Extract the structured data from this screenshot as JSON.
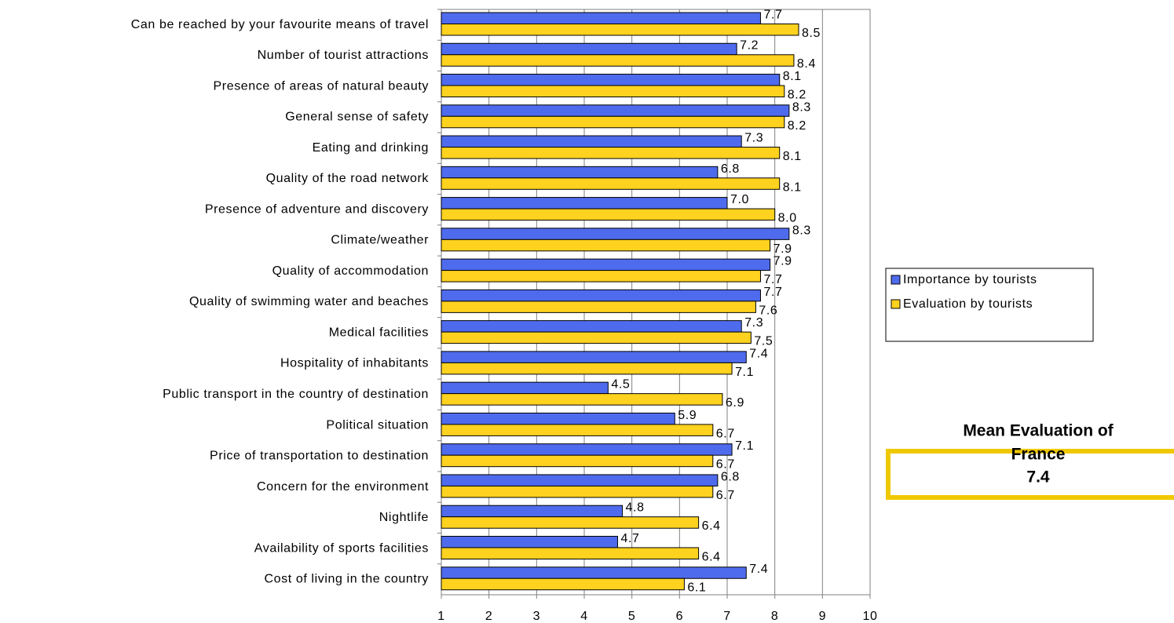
{
  "chart_data": {
    "type": "bar",
    "orientation": "horizontal",
    "categories": [
      "Can be reached by your favourite means of travel",
      "Number of tourist attractions",
      "Presence of areas of natural beauty",
      "General sense of safety",
      "Eating and drinking",
      "Quality of the road network",
      "Presence of adventure and discovery",
      "Climate/weather",
      "Quality of accommodation",
      "Quality of swimming water and beaches",
      "Medical facilities",
      "Hospitality of inhabitants",
      "Public transport in the country of destination",
      "Political situation",
      "Price of transportation to destination",
      "Concern for the environment",
      "Nightlife",
      "Availability of sports facilities",
      "Cost of living in the country"
    ],
    "series": [
      {
        "name": "Importance by tourists",
        "color": "#4f6bed",
        "values": [
          7.7,
          7.2,
          8.1,
          8.3,
          7.3,
          6.8,
          7.0,
          8.3,
          7.9,
          7.7,
          7.3,
          7.4,
          4.5,
          5.9,
          7.1,
          6.8,
          4.8,
          4.7,
          7.4
        ],
        "value_labels": [
          "7.7",
          "7.2",
          "8.1",
          "8.3",
          "7.3",
          "6.8",
          "7.0",
          "8.3",
          "7.9",
          "7.7",
          "7.3",
          "7.4",
          "4.5",
          "5.9",
          "7.1",
          "6.8",
          "4.8",
          "4.7",
          "7.4"
        ]
      },
      {
        "name": "Evaluation by tourists",
        "color": "#ffd21f",
        "values": [
          8.5,
          8.4,
          8.2,
          8.2,
          8.1,
          8.1,
          8.0,
          7.9,
          7.7,
          7.6,
          7.5,
          7.1,
          6.9,
          6.7,
          6.7,
          6.7,
          6.4,
          6.4,
          6.1
        ],
        "value_labels": [
          "8.5",
          "8.4",
          "8.2",
          "8.2",
          "8.1",
          "8.1",
          "8.0",
          "7.9",
          "7.7",
          "7.6",
          "7.5",
          "7.1",
          "6.9",
          "6.7",
          "6.7",
          "6.7",
          "6.4",
          "6.4",
          "6.1"
        ]
      }
    ],
    "xlim": [
      1,
      10
    ],
    "xticks": [
      1,
      2,
      3,
      4,
      5,
      6,
      7,
      8,
      9,
      10
    ],
    "grid": true,
    "legend": "right",
    "annotation": {
      "text_lines": [
        "Mean Evaluation of",
        "France"
      ],
      "value": 7.4,
      "border_color": "#f0c800"
    }
  }
}
